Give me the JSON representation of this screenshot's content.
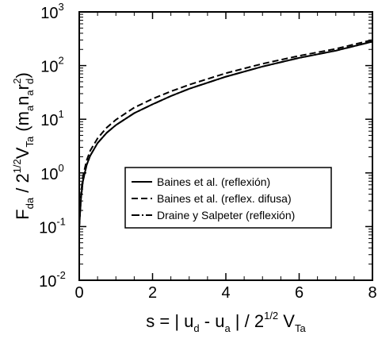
{
  "chart_data": {
    "type": "line",
    "x_axis": {
      "label_parts": [
        "s = | u",
        "d",
        " - u",
        "a",
        " | / 2",
        "1/2",
        " V",
        "Ta"
      ],
      "range": [
        0,
        8
      ],
      "ticks": [
        0,
        2,
        4,
        6,
        8
      ],
      "tick_labels": [
        "0",
        "2",
        "4",
        "6",
        "8"
      ],
      "scale": "linear"
    },
    "y_axis": {
      "label_parts": [
        "F",
        "da",
        " / 2",
        "1/2",
        "V",
        "Ta",
        " (m",
        "a",
        "n",
        "a",
        "r",
        "d",
        "2",
        ")"
      ],
      "range": [
        0.01,
        1000
      ],
      "scale": "log",
      "ticks": [
        0.01,
        0.1,
        1,
        10,
        100,
        1000
      ],
      "tick_labels": [
        {
          "base": "10",
          "exp": "-2"
        },
        {
          "base": "10",
          "exp": "-1"
        },
        {
          "base": "10",
          "exp": "0"
        },
        {
          "base": "10",
          "exp": "1"
        },
        {
          "base": "10",
          "exp": "2"
        },
        {
          "base": "10",
          "exp": "3"
        }
      ]
    },
    "grid": false,
    "legend_position": "lower-right",
    "series": [
      {
        "name": "Baines et al. (reflexión)",
        "line_style": "solid",
        "color": "#000000",
        "x": [
          0,
          0.05,
          0.1,
          0.2,
          0.3,
          0.5,
          0.75,
          1,
          1.5,
          2,
          2.5,
          3,
          4,
          5,
          6,
          7,
          8
        ],
        "y": [
          0.1,
          0.35,
          0.7,
          1.4,
          2.1,
          3.6,
          5.6,
          7.8,
          13,
          19,
          27,
          37,
          62,
          96,
          139,
          190,
          280
        ]
      },
      {
        "name": "Baines et al. (reflex. difusa)",
        "line_style": "dashed",
        "color": "#000000",
        "x": [
          0,
          0.05,
          0.1,
          0.2,
          0.3,
          0.5,
          0.75,
          1,
          1.5,
          2,
          2.5,
          3,
          4,
          5,
          6,
          7,
          8
        ],
        "y": [
          0.1,
          0.42,
          0.85,
          1.7,
          2.6,
          4.4,
          7,
          9.8,
          16.5,
          24,
          33,
          44,
          72,
          108,
          152,
          205,
          300
        ]
      },
      {
        "name": "Draine y Salpeter (reflexión)",
        "line_style": "dash-dot",
        "color": "#000000",
        "x": [
          0,
          0.05,
          0.1,
          0.2,
          0.3,
          0.5,
          0.75,
          1,
          1.5,
          2,
          2.5,
          3,
          4,
          5,
          6,
          7,
          8
        ],
        "y": [
          0.1,
          0.35,
          0.7,
          1.4,
          2.1,
          3.6,
          5.6,
          7.8,
          13,
          19,
          27,
          37,
          62,
          96,
          139,
          190,
          280
        ]
      }
    ]
  }
}
